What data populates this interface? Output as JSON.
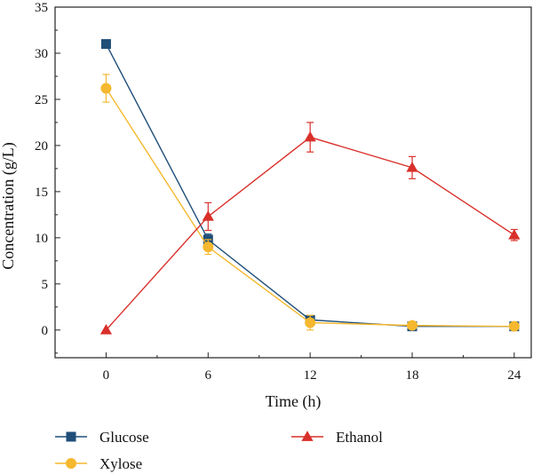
{
  "chart_data": {
    "type": "line",
    "title": "",
    "xlabel": "Time (h)",
    "ylabel": "Concentration (g/L)",
    "x": [
      0,
      6,
      12,
      18,
      24
    ],
    "xticks": [
      "0",
      "6",
      "12",
      "18",
      "24"
    ],
    "xlim": [
      -3,
      25
    ],
    "ylim": [
      -3,
      35
    ],
    "yticks": [
      "0",
      "5",
      "10",
      "15",
      "20",
      "25",
      "30",
      "35"
    ],
    "grid": false,
    "legend_position": "bottom",
    "series": [
      {
        "name": "Glucose",
        "color": "#1f4e79",
        "marker": "square",
        "values": [
          31.0,
          9.8,
          1.1,
          0.4,
          0.4
        ],
        "errors": [
          0.4,
          0.6,
          0.3,
          0.1,
          0.1
        ]
      },
      {
        "name": "Xylose",
        "color": "#f5b82e",
        "marker": "circle",
        "values": [
          26.2,
          9.0,
          0.8,
          0.5,
          0.4
        ],
        "errors": [
          1.5,
          0.8,
          0.8,
          0.2,
          0.2
        ]
      },
      {
        "name": "Ethanol",
        "color": "#d9302a",
        "marker": "triangle",
        "values": [
          0.0,
          12.3,
          20.9,
          17.6,
          10.3
        ],
        "errors": [
          0.0,
          1.5,
          1.6,
          1.2,
          0.6
        ]
      }
    ]
  }
}
